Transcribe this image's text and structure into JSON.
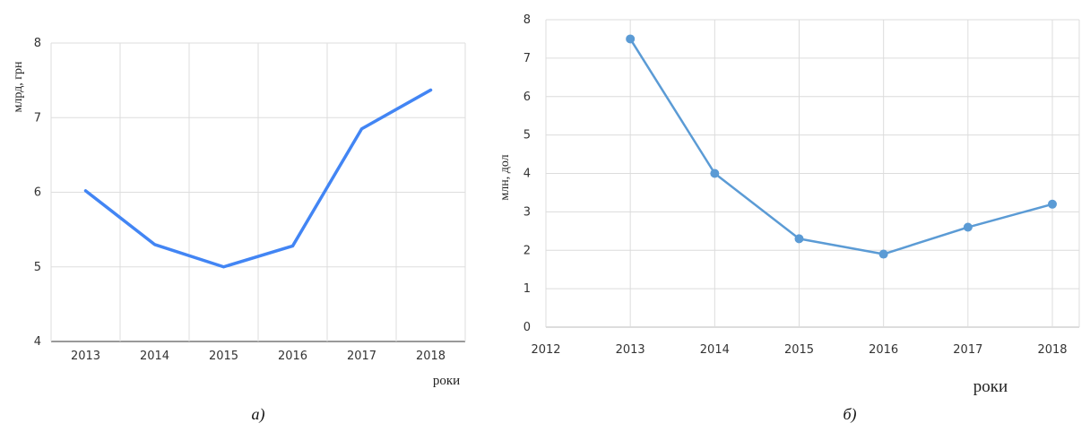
{
  "chart_data": [
    {
      "type": "line",
      "ylabel": "млрд, грн",
      "xlabel": "роки",
      "caption": "а)",
      "categories": [
        "2013",
        "2014",
        "2015",
        "2016",
        "2017",
        "2018"
      ],
      "y_ticks": [
        "4",
        "5",
        "6",
        "7",
        "8"
      ],
      "ylim": [
        4,
        8
      ],
      "series": [
        {
          "values": [
            6.02,
            5.3,
            5.0,
            5.28,
            6.85,
            7.37
          ],
          "color": "#4285f4"
        }
      ],
      "markers": false,
      "grid": true
    },
    {
      "type": "line",
      "ylabel": "млн, дол",
      "xlabel": "роки",
      "caption": "б)",
      "x_ticks": [
        "2012",
        "2013",
        "2014",
        "2015",
        "2016",
        "2017",
        "2018"
      ],
      "y_ticks": [
        "0",
        "1",
        "2",
        "3",
        "4",
        "5",
        "6",
        "7",
        "8"
      ],
      "xlim": [
        2012,
        2018
      ],
      "ylim": [
        0,
        8
      ],
      "series": [
        {
          "x": [
            2013,
            2014,
            2015,
            2016,
            2017,
            2018
          ],
          "values": [
            7.5,
            4.0,
            2.3,
            1.9,
            2.6,
            3.2
          ],
          "color": "#5b9bd5"
        }
      ],
      "markers": true,
      "grid": true
    }
  ]
}
